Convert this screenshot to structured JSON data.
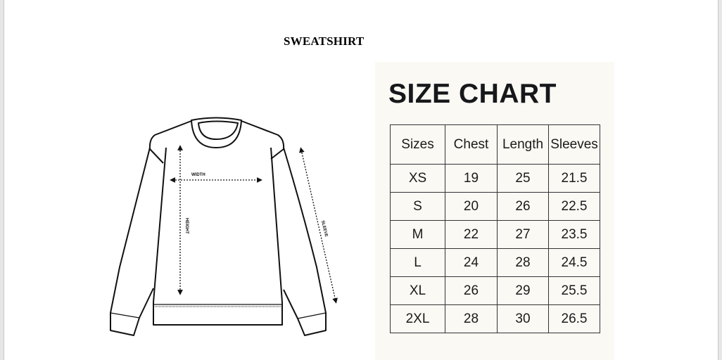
{
  "document": {
    "title": "SWEATSHIRT"
  },
  "diagram": {
    "labels": {
      "width": "WIDTH",
      "height": "HEIGHT",
      "sleeve": "SLEEVE"
    }
  },
  "size_chart": {
    "title": "SIZE CHART",
    "headers": [
      "Sizes",
      "Chest",
      "Length",
      "Sleeves"
    ],
    "rows": [
      [
        "XS",
        "19",
        "25",
        "21.5"
      ],
      [
        "S",
        "20",
        "26",
        "22.5"
      ],
      [
        "M",
        "22",
        "27",
        "23.5"
      ],
      [
        "L",
        "24",
        "28",
        "24.5"
      ],
      [
        "XL",
        "26",
        "29",
        "25.5"
      ],
      [
        "2XL",
        "28",
        "30",
        "26.5"
      ]
    ]
  }
}
